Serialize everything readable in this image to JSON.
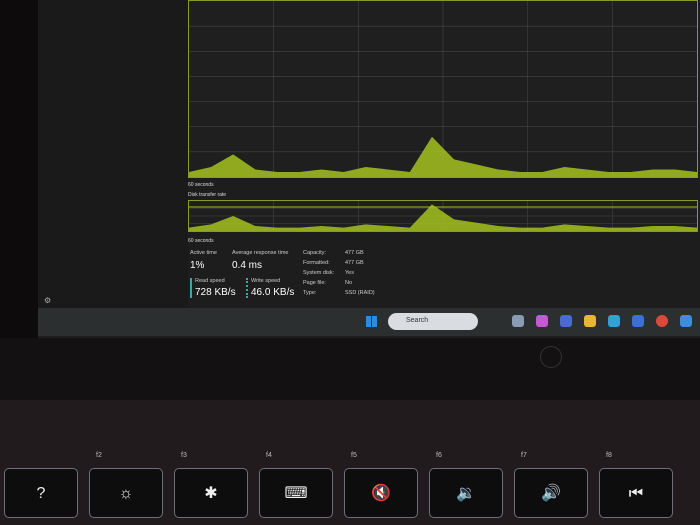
{
  "graphs": {
    "active_time_footer": "60 seconds",
    "transfer_title": "Disk transfer rate",
    "transfer_footer": "60 seconds"
  },
  "chart_data": {
    "type": "area",
    "title": "",
    "values": [
      2,
      4,
      9,
      3,
      2,
      2,
      3,
      2,
      4,
      3,
      2,
      16,
      7,
      5,
      3,
      2,
      2,
      4,
      3,
      2,
      2,
      3,
      3,
      2
    ],
    "color": "#a6c21e"
  },
  "stats": {
    "active_time_label": "Active time",
    "active_time": "1%",
    "response_label": "Average response time",
    "response": "0.4 ms",
    "read_label": "Read speed",
    "read": "728 KB/s",
    "write_label": "Write speed",
    "write": "46.0 KB/s",
    "props": [
      {
        "k": "Capacity:",
        "v": "477 GB"
      },
      {
        "k": "Formatted:",
        "v": "477 GB"
      },
      {
        "k": "System disk:",
        "v": "Yes"
      },
      {
        "k": "Page file:",
        "v": "No"
      },
      {
        "k": "Type:",
        "v": "SSD (RAID)"
      }
    ]
  },
  "taskbar": {
    "search": "Search"
  },
  "keys": [
    {
      "fn": "",
      "g": "?"
    },
    {
      "fn": "f2",
      "g": "☼"
    },
    {
      "fn": "f3",
      "g": "✱"
    },
    {
      "fn": "f4",
      "g": "⌨"
    },
    {
      "fn": "f5",
      "g": "🔇"
    },
    {
      "fn": "f6",
      "g": "🔉"
    },
    {
      "fn": "f7",
      "g": "🔊"
    },
    {
      "fn": "f8",
      "g": "⏮"
    }
  ],
  "colors": {
    "accent": "#a6c21e",
    "read": "#3aa6b0"
  }
}
